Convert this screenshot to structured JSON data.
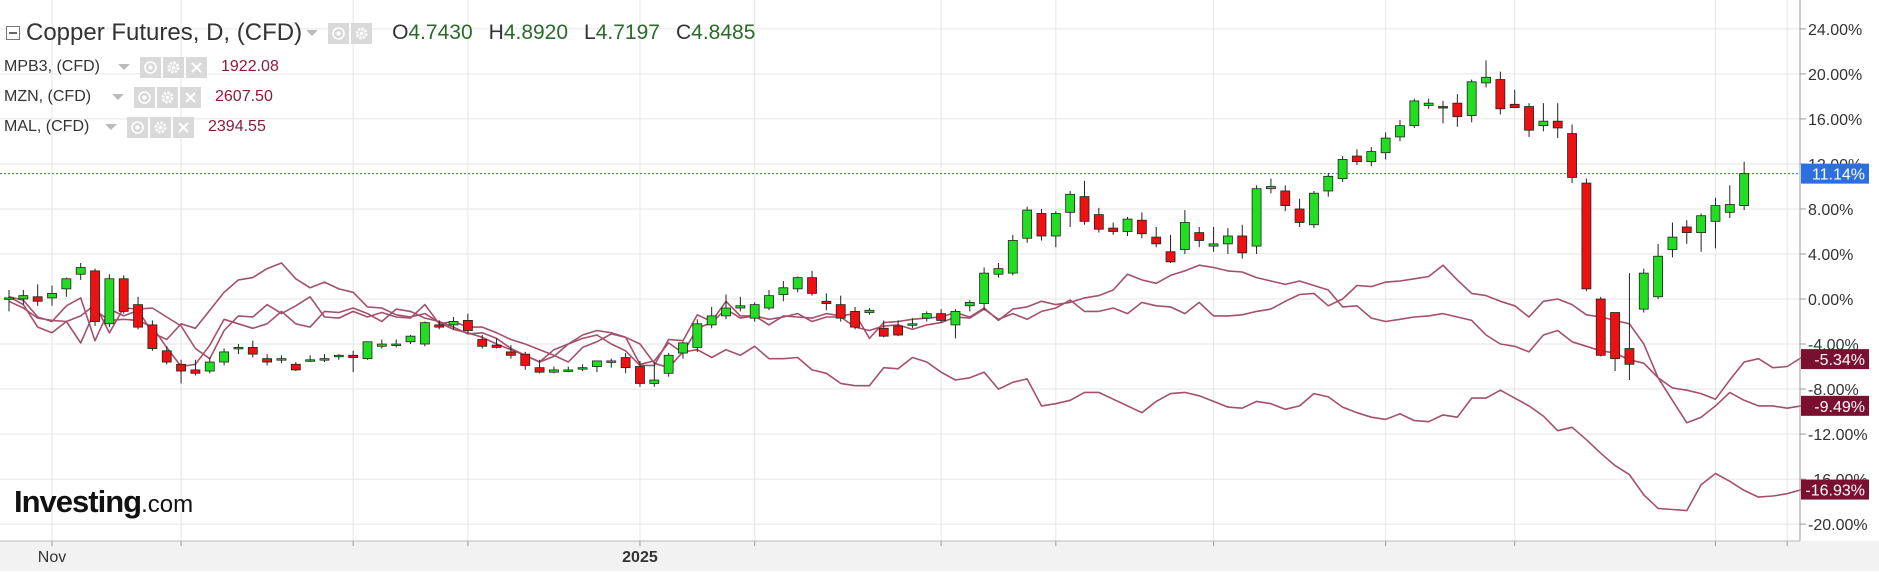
{
  "legend": {
    "main": {
      "title": "Copper Futures, D, (CFD)",
      "open_label": "O",
      "open": "4.7430",
      "high_label": "H",
      "high": "4.8920",
      "low_label": "L",
      "low": "4.7197",
      "close_label": "C",
      "close": "4.8485"
    },
    "series": [
      {
        "name": "MPB3, (CFD)",
        "value": "1922.08"
      },
      {
        "name": "MZN, (CFD)",
        "value": "2607.50"
      },
      {
        "name": "MAL, (CFD)",
        "value": "2394.55"
      }
    ]
  },
  "logo": {
    "brand": "Investing",
    "domain": ".com"
  },
  "colors": {
    "up": "#22dd22",
    "down": "#ee1111",
    "line": "#a5506a",
    "badge_main": "#2d6fe0",
    "badge_series": "#7a0f30",
    "grid": "#e6e6e6"
  },
  "chart_data": {
    "type": "candlestick",
    "ylim": [
      -21.5,
      25.5
    ],
    "y_unit": "%",
    "y_ticks": [
      24,
      20,
      16,
      12,
      8,
      4,
      0,
      -4,
      -8,
      -12,
      -16,
      -20
    ],
    "y_tick_labels": [
      "24.00%",
      "20.00%",
      "16.00%",
      "12.00%",
      "8.00%",
      "4.00%",
      "0.00%",
      "-4.00%",
      "-8.00%",
      "-12.00%",
      "-16.00%",
      "-20.00%"
    ],
    "x_labels": [
      {
        "index": 3,
        "label": "Nov"
      },
      {
        "index": 44,
        "label": "2025"
      }
    ],
    "x_tick_indices": [
      3,
      12,
      24,
      32,
      44,
      52,
      65,
      73,
      84,
      96,
      105,
      119,
      124
    ],
    "current_value_badges": [
      {
        "label": "11.14%",
        "value": 11.14
      },
      {
        "label": "-5.34%",
        "value": -5.34
      },
      {
        "label": "-9.49%",
        "value": -9.49
      },
      {
        "label": "-16.93%",
        "value": -16.93
      }
    ],
    "candles": [
      {
        "o": 0,
        "h": 0.8,
        "l": -1.1,
        "c": 0.1
      },
      {
        "o": 0.0,
        "h": 0.8,
        "l": -0.5,
        "c": 0.3
      },
      {
        "o": 0.2,
        "h": 1.3,
        "l": -0.6,
        "c": -0.2
      },
      {
        "o": 0.1,
        "h": 1.2,
        "l": -0.6,
        "c": 0.5
      },
      {
        "o": 0.9,
        "h": 1.9,
        "l": 0.2,
        "c": 1.8
      },
      {
        "o": 2.2,
        "h": 3.2,
        "l": 1.7,
        "c": 2.8
      },
      {
        "o": 2.5,
        "h": 2.7,
        "l": -2.4,
        "c": -2.0
      },
      {
        "o": -2.2,
        "h": 2.2,
        "l": -2.5,
        "c": 1.8
      },
      {
        "o": 1.8,
        "h": 2.1,
        "l": -1.3,
        "c": -1.1
      },
      {
        "o": -0.5,
        "h": 0.2,
        "l": -2.7,
        "c": -2.5
      },
      {
        "o": -2.3,
        "h": -1.9,
        "l": -4.6,
        "c": -4.4
      },
      {
        "o": -4.6,
        "h": -4.2,
        "l": -5.8,
        "c": -5.6
      },
      {
        "o": -5.8,
        "h": -5.4,
        "l": -7.5,
        "c": -6.4
      },
      {
        "o": -6.3,
        "h": -5.4,
        "l": -6.8,
        "c": -6.6
      },
      {
        "o": -6.4,
        "h": -5.2,
        "l": -6.6,
        "c": -5.6
      },
      {
        "o": -5.6,
        "h": -4.4,
        "l": -5.9,
        "c": -4.7
      },
      {
        "o": -4.4,
        "h": -4.0,
        "l": -4.9,
        "c": -4.3
      },
      {
        "o": -4.3,
        "h": -3.7,
        "l": -5.2,
        "c": -4.9
      },
      {
        "o": -5.3,
        "h": -4.9,
        "l": -5.9,
        "c": -5.6
      },
      {
        "o": -5.3,
        "h": -5.0,
        "l": -5.7,
        "c": -5.3
      },
      {
        "o": -5.8,
        "h": -5.6,
        "l": -6.4,
        "c": -6.3
      },
      {
        "o": -5.4,
        "h": -5.0,
        "l": -5.6,
        "c": -5.4
      },
      {
        "o": -5.3,
        "h": -4.9,
        "l": -5.6,
        "c": -5.3
      },
      {
        "o": -5.1,
        "h": -4.9,
        "l": -5.4,
        "c": -5.0
      },
      {
        "o": -5.0,
        "h": -4.6,
        "l": -6.5,
        "c": -5.2
      },
      {
        "o": -5.3,
        "h": -3.8,
        "l": -5.4,
        "c": -3.8
      },
      {
        "o": -4.2,
        "h": -3.6,
        "l": -4.4,
        "c": -4.0
      },
      {
        "o": -4.1,
        "h": -3.6,
        "l": -4.3,
        "c": -4.0
      },
      {
        "o": -3.8,
        "h": -3.2,
        "l": -4.0,
        "c": -3.3
      },
      {
        "o": -4.0,
        "h": -2.0,
        "l": -4.2,
        "c": -2.1
      },
      {
        "o": -2.3,
        "h": -1.9,
        "l": -2.7,
        "c": -2.5
      },
      {
        "o": -2.3,
        "h": -1.6,
        "l": -2.7,
        "c": -2.0
      },
      {
        "o": -1.9,
        "h": -1.3,
        "l": -3.0,
        "c": -2.8
      },
      {
        "o": -3.6,
        "h": -3.2,
        "l": -4.4,
        "c": -4.2
      },
      {
        "o": -4.1,
        "h": -3.5,
        "l": -4.4,
        "c": -4.3
      },
      {
        "o": -4.7,
        "h": -4.1,
        "l": -5.3,
        "c": -5.0
      },
      {
        "o": -4.9,
        "h": -4.7,
        "l": -6.3,
        "c": -5.9
      },
      {
        "o": -6.1,
        "h": -5.4,
        "l": -6.6,
        "c": -6.5
      },
      {
        "o": -6.5,
        "h": -6.0,
        "l": -6.6,
        "c": -6.3
      },
      {
        "o": -6.3,
        "h": -6.0,
        "l": -6.5,
        "c": -6.3
      },
      {
        "o": -6.2,
        "h": -5.8,
        "l": -6.4,
        "c": -6.1
      },
      {
        "o": -6.0,
        "h": -5.5,
        "l": -6.5,
        "c": -5.5
      },
      {
        "o": -5.6,
        "h": -5.3,
        "l": -6.1,
        "c": -5.5
      },
      {
        "o": -5.2,
        "h": -4.8,
        "l": -6.6,
        "c": -6.1
      },
      {
        "o": -6.0,
        "h": -5.5,
        "l": -7.8,
        "c": -7.5
      },
      {
        "o": -7.5,
        "h": -5.6,
        "l": -7.8,
        "c": -7.2
      },
      {
        "o": -6.6,
        "h": -4.8,
        "l": -6.9,
        "c": -5.0
      },
      {
        "o": -4.8,
        "h": -3.8,
        "l": -5.3,
        "c": -3.9
      },
      {
        "o": -4.3,
        "h": -1.8,
        "l": -4.7,
        "c": -2.2
      },
      {
        "o": -2.3,
        "h": -0.7,
        "l": -2.6,
        "c": -1.5
      },
      {
        "o": -1.5,
        "h": 0.4,
        "l": -1.8,
        "c": -0.8
      },
      {
        "o": -0.8,
        "h": 0.2,
        "l": -1.1,
        "c": -0.6
      },
      {
        "o": -1.7,
        "h": -0.3,
        "l": -2.0,
        "c": -0.5
      },
      {
        "o": -0.8,
        "h": 0.8,
        "l": -1.0,
        "c": 0.3
      },
      {
        "o": 0.4,
        "h": 1.6,
        "l": -0.2,
        "c": 1.0
      },
      {
        "o": 0.9,
        "h": 2.0,
        "l": 0.6,
        "c": 1.9
      },
      {
        "o": 1.9,
        "h": 2.5,
        "l": 0.3,
        "c": 0.5
      },
      {
        "o": -0.2,
        "h": 0.5,
        "l": -1.0,
        "c": -0.4
      },
      {
        "o": -0.5,
        "h": 0.3,
        "l": -2.0,
        "c": -1.7
      },
      {
        "o": -1.1,
        "h": -0.7,
        "l": -2.7,
        "c": -2.5
      },
      {
        "o": -1.2,
        "h": -0.8,
        "l": -1.4,
        "c": -1.0
      },
      {
        "o": -2.6,
        "h": -1.9,
        "l": -3.4,
        "c": -3.3
      },
      {
        "o": -2.4,
        "h": -1.9,
        "l": -3.3,
        "c": -3.2
      },
      {
        "o": -2.3,
        "h": -1.7,
        "l": -2.6,
        "c": -2.2
      },
      {
        "o": -1.7,
        "h": -1.1,
        "l": -2.0,
        "c": -1.3
      },
      {
        "o": -1.3,
        "h": -0.9,
        "l": -2.1,
        "c": -1.9
      },
      {
        "o": -2.3,
        "h": -0.9,
        "l": -3.5,
        "c": -1.1
      },
      {
        "o": -0.6,
        "h": -0.1,
        "l": -1.1,
        "c": -0.3
      },
      {
        "o": -0.4,
        "h": 2.8,
        "l": -1.0,
        "c": 2.3
      },
      {
        "o": 2.2,
        "h": 3.2,
        "l": 1.9,
        "c": 2.7
      },
      {
        "o": 2.3,
        "h": 5.7,
        "l": 2.1,
        "c": 5.2
      },
      {
        "o": 5.4,
        "h": 8.2,
        "l": 5.0,
        "c": 7.9
      },
      {
        "o": 7.6,
        "h": 8.0,
        "l": 5.2,
        "c": 5.6
      },
      {
        "o": 5.6,
        "h": 7.8,
        "l": 4.6,
        "c": 7.6
      },
      {
        "o": 7.7,
        "h": 9.6,
        "l": 6.4,
        "c": 9.3
      },
      {
        "o": 9.1,
        "h": 10.5,
        "l": 6.6,
        "c": 6.9
      },
      {
        "o": 7.5,
        "h": 8.1,
        "l": 5.9,
        "c": 6.2
      },
      {
        "o": 6.3,
        "h": 6.8,
        "l": 5.7,
        "c": 6.0
      },
      {
        "o": 6.0,
        "h": 7.3,
        "l": 5.6,
        "c": 7.1
      },
      {
        "o": 7.0,
        "h": 7.7,
        "l": 5.4,
        "c": 5.8
      },
      {
        "o": 5.5,
        "h": 6.4,
        "l": 4.6,
        "c": 4.9
      },
      {
        "o": 4.2,
        "h": 5.7,
        "l": 3.2,
        "c": 3.3
      },
      {
        "o": 4.4,
        "h": 7.9,
        "l": 4.0,
        "c": 6.8
      },
      {
        "o": 5.9,
        "h": 6.4,
        "l": 4.6,
        "c": 5.2
      },
      {
        "o": 4.7,
        "h": 6.4,
        "l": 4.2,
        "c": 4.9
      },
      {
        "o": 4.9,
        "h": 6.3,
        "l": 4.0,
        "c": 5.6
      },
      {
        "o": 5.6,
        "h": 6.6,
        "l": 3.6,
        "c": 4.1
      },
      {
        "o": 4.7,
        "h": 10.1,
        "l": 4.0,
        "c": 9.8
      },
      {
        "o": 9.8,
        "h": 10.7,
        "l": 9.4,
        "c": 10.0
      },
      {
        "o": 9.6,
        "h": 10.1,
        "l": 7.8,
        "c": 8.3
      },
      {
        "o": 8.0,
        "h": 8.9,
        "l": 6.4,
        "c": 6.8
      },
      {
        "o": 6.6,
        "h": 9.6,
        "l": 6.3,
        "c": 9.4
      },
      {
        "o": 9.6,
        "h": 11.2,
        "l": 9.1,
        "c": 10.9
      },
      {
        "o": 10.7,
        "h": 12.7,
        "l": 10.4,
        "c": 12.4
      },
      {
        "o": 12.7,
        "h": 13.3,
        "l": 11.9,
        "c": 12.2
      },
      {
        "o": 12.2,
        "h": 13.5,
        "l": 11.8,
        "c": 13.1
      },
      {
        "o": 13.0,
        "h": 14.8,
        "l": 12.4,
        "c": 14.3
      },
      {
        "o": 14.4,
        "h": 15.9,
        "l": 14.0,
        "c": 15.4
      },
      {
        "o": 15.4,
        "h": 17.8,
        "l": 15.2,
        "c": 17.6
      },
      {
        "o": 17.2,
        "h": 17.8,
        "l": 16.9,
        "c": 17.4
      },
      {
        "o": 17.1,
        "h": 17.6,
        "l": 15.6,
        "c": 17.0
      },
      {
        "o": 17.4,
        "h": 18.2,
        "l": 15.3,
        "c": 16.2
      },
      {
        "o": 16.3,
        "h": 19.5,
        "l": 15.7,
        "c": 19.3
      },
      {
        "o": 19.2,
        "h": 21.2,
        "l": 18.8,
        "c": 19.7
      },
      {
        "o": 19.5,
        "h": 20.2,
        "l": 16.4,
        "c": 16.9
      },
      {
        "o": 17.3,
        "h": 18.6,
        "l": 17.0,
        "c": 17.0
      },
      {
        "o": 17.1,
        "h": 17.4,
        "l": 14.4,
        "c": 15.0
      },
      {
        "o": 15.4,
        "h": 17.4,
        "l": 14.9,
        "c": 15.8
      },
      {
        "o": 15.8,
        "h": 17.4,
        "l": 14.3,
        "c": 15.2
      },
      {
        "o": 14.7,
        "h": 15.5,
        "l": 10.3,
        "c": 10.8
      },
      {
        "o": 10.3,
        "h": 10.7,
        "l": 0.7,
        "c": 0.9
      },
      {
        "o": 0.0,
        "h": 0.2,
        "l": -5.1,
        "c": -5.0
      },
      {
        "o": -1.2,
        "h": -1.2,
        "l": -6.4,
        "c": -5.3
      },
      {
        "o": -4.4,
        "h": 2.3,
        "l": -7.2,
        "c": -5.8
      },
      {
        "o": -0.9,
        "h": 2.7,
        "l": -1.2,
        "c": 2.3
      },
      {
        "o": 0.2,
        "h": 4.9,
        "l": 0.0,
        "c": 3.8
      },
      {
        "o": 4.4,
        "h": 6.8,
        "l": 3.7,
        "c": 5.5
      },
      {
        "o": 6.4,
        "h": 7.0,
        "l": 4.9,
        "c": 5.9
      },
      {
        "o": 5.9,
        "h": 7.6,
        "l": 4.2,
        "c": 7.4
      },
      {
        "o": 6.9,
        "h": 9.0,
        "l": 4.5,
        "c": 8.3
      },
      {
        "o": 7.7,
        "h": 10.1,
        "l": 7.2,
        "c": 8.4
      },
      {
        "o": 8.3,
        "h": 12.2,
        "l": 7.9,
        "c": 11.14
      }
    ],
    "series": [
      {
        "name": "MPB3, (CFD)",
        "values": [
          0.2,
          -0.5,
          -2.5,
          -3.0,
          -2.0,
          -1.5,
          -0.5,
          -3.0,
          -0.8,
          -0.9,
          -0.8,
          -1.6,
          -2.4,
          -4.4,
          -5.3,
          -2.8,
          -1.5,
          -1.6,
          -0.5,
          -1.3,
          -0.6,
          0.2,
          -1.6,
          -1.7,
          -1.1,
          -1.6,
          -1.2,
          -1.6,
          -1.7,
          -0.5,
          -2.2,
          -2.0,
          -2.5,
          -2.5,
          -3.0,
          -3.6,
          -4.0,
          -4.5,
          -5.0,
          -5.6,
          -4.3,
          -3.8,
          -3.1,
          -3.4,
          -5.8,
          -5.5,
          -3.9,
          -4.8,
          -2.6,
          -2.1,
          -0.9,
          -1.7,
          -1.5,
          -1.8,
          -1.6,
          -1.3,
          -2.0,
          -1.6,
          -1.6,
          -2.5,
          -2.8,
          -2.4,
          -2.3,
          -2.7,
          -2.3,
          -2.1,
          -1.6,
          -1.7,
          -0.9,
          -1.8,
          -1.3,
          -1.8,
          -1.1,
          -0.8,
          -0.1,
          -1.1,
          -1.1,
          -0.8,
          -1.3,
          -0.3,
          -0.6,
          -0.7,
          -1.3,
          -0.3,
          -1.5,
          -1.5,
          -1.4,
          -1.1,
          -0.9,
          -0.2,
          0.4,
          0.5,
          -0.6,
          0.0,
          1.2,
          1.1,
          1.5,
          1.6,
          1.8,
          2.0,
          3.0,
          1.7,
          0.5,
          0.3,
          -0.2,
          -0.6,
          -1.6,
          -0.2,
          0.0,
          -0.5,
          -1.4,
          -1.6,
          -1.9,
          -2.2,
          -4.0,
          -7.0,
          -9.0,
          -11.0,
          -10.5,
          -9.5,
          -8.3,
          -9.0,
          -9.5,
          -9.5,
          -9.7,
          -9.49
        ]
      },
      {
        "name": "MZN, (CFD)",
        "values": [
          -0.2,
          -0.8,
          -1.7,
          -1.9,
          -2.0,
          -3.9,
          -1.0,
          -1.9,
          -1.8,
          -1.9,
          -2.5,
          -4.3,
          -6.0,
          -5.8,
          -4.1,
          -1.8,
          -2.2,
          -2.6,
          -2.2,
          -1.1,
          -2.2,
          -2.5,
          -1.1,
          -1.2,
          -0.8,
          -1.3,
          -2.0,
          -0.9,
          -1.1,
          -1.7,
          -2.0,
          -2.5,
          -3.1,
          -3.0,
          -3.5,
          -4.4,
          -5.0,
          -5.6,
          -4.5,
          -4.0,
          -3.2,
          -2.8,
          -3.0,
          -3.4,
          -4.0,
          -5.7,
          -6.1,
          -4.7,
          -4.5,
          -5.2,
          -4.5,
          -5.0,
          -4.2,
          -5.3,
          -5.3,
          -5.2,
          -6.3,
          -6.6,
          -7.5,
          -7.7,
          -7.7,
          -6.1,
          -6.2,
          -5.2,
          -5.6,
          -6.5,
          -7.2,
          -7.0,
          -6.5,
          -8.0,
          -7.4,
          -7.1,
          -9.5,
          -9.3,
          -9.0,
          -8.3,
          -8.3,
          -8.9,
          -9.5,
          -10.1,
          -9.1,
          -8.4,
          -8.3,
          -8.6,
          -9.1,
          -9.6,
          -9.7,
          -9.1,
          -9.3,
          -9.8,
          -9.5,
          -8.4,
          -8.7,
          -9.6,
          -10.1,
          -10.5,
          -10.7,
          -10.2,
          -10.8,
          -10.9,
          -10.3,
          -10.5,
          -8.8,
          -8.8,
          -8.1,
          -8.8,
          -9.5,
          -10.4,
          -11.7,
          -11.4,
          -12.5,
          -13.7,
          -14.8,
          -15.6,
          -17.4,
          -18.6,
          -18.7,
          -18.8,
          -16.5,
          -15.5,
          -16.2,
          -17.0,
          -17.6,
          -17.5,
          -17.3,
          -16.93
        ]
      },
      {
        "name": "MAL, (CFD)",
        "values": [
          0.2,
          -0.1,
          -1.6,
          -2.0,
          -0.6,
          0.1,
          -3.7,
          -0.9,
          -1.5,
          -1.0,
          -3.0,
          -3.6,
          -2.2,
          -2.6,
          -1.0,
          0.6,
          1.7,
          1.9,
          2.7,
          3.2,
          1.8,
          1.0,
          1.5,
          0.9,
          0.6,
          -0.7,
          -0.8,
          -1.4,
          -1.6,
          -1.3,
          -2.1,
          -2.7,
          -3.0,
          -3.4,
          -4.0,
          -4.5,
          -5.0,
          -5.6,
          -5.1,
          -4.0,
          -3.5,
          -3.2,
          -4.0,
          -4.6,
          -5.9,
          -5.9,
          -3.6,
          -3.7,
          -1.4,
          -2.0,
          -0.2,
          -1.5,
          -1.5,
          -2.3,
          -1.5,
          -1.6,
          -1.7,
          -1.3,
          -1.5,
          -1.3,
          -3.5,
          -2.1,
          -2.0,
          -1.8,
          -1.7,
          -1.6,
          -1.2,
          -1.6,
          -0.8,
          -1.9,
          -0.9,
          -0.7,
          -0.2,
          -0.5,
          -0.3,
          0.1,
          0.3,
          0.8,
          2.2,
          1.7,
          1.4,
          2.1,
          2.5,
          3.0,
          2.8,
          2.5,
          2.4,
          1.9,
          1.6,
          1.3,
          1.6,
          1.2,
          0.8,
          -0.7,
          -0.6,
          -1.7,
          -2.0,
          -1.8,
          -1.6,
          -1.5,
          -1.3,
          -1.6,
          -1.9,
          -3.2,
          -4.0,
          -4.2,
          -4.7,
          -3.2,
          -2.8,
          -3.8,
          -4.2,
          -4.6,
          -4.8,
          -5.4,
          -5.7,
          -7.0,
          -7.9,
          -8.1,
          -8.4,
          -8.9,
          -7.2,
          -5.6,
          -5.3,
          -6.1,
          -6.0,
          -5.2,
          -5.1,
          -5.34
        ]
      }
    ]
  }
}
